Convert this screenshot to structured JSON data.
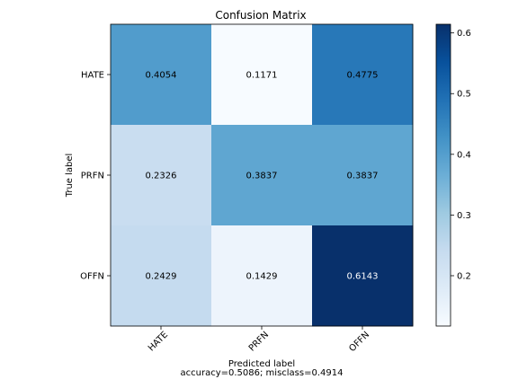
{
  "chart_data": {
    "type": "heatmap",
    "title": "Confusion Matrix",
    "ylabel": "True label",
    "xlabel": "Predicted label",
    "xlabel_line2": "accuracy=0.5086; misclass=0.4914",
    "row_labels": [
      "HATE",
      "PRFN",
      "OFFN"
    ],
    "col_labels": [
      "HATE",
      "PRFN",
      "OFFN"
    ],
    "cell_text": [
      [
        "0.4054",
        "0.1171",
        "0.4775"
      ],
      [
        "0.2326",
        "0.3837",
        "0.3837"
      ],
      [
        "0.2429",
        "0.1429",
        "0.6143"
      ]
    ],
    "values": [
      [
        0.4054,
        0.1171,
        0.4775
      ],
      [
        0.2326,
        0.3837,
        0.3837
      ],
      [
        0.2429,
        0.1429,
        0.6143
      ]
    ],
    "colormap": "Blues",
    "colorbar_range": [
      0.1171,
      0.6143
    ],
    "colorbar_ticks": [
      "0.2",
      "0.3",
      "0.4",
      "0.5",
      "0.6"
    ],
    "colorbar_tick_values": [
      0.2,
      0.3,
      0.4,
      0.5,
      0.6
    ]
  }
}
